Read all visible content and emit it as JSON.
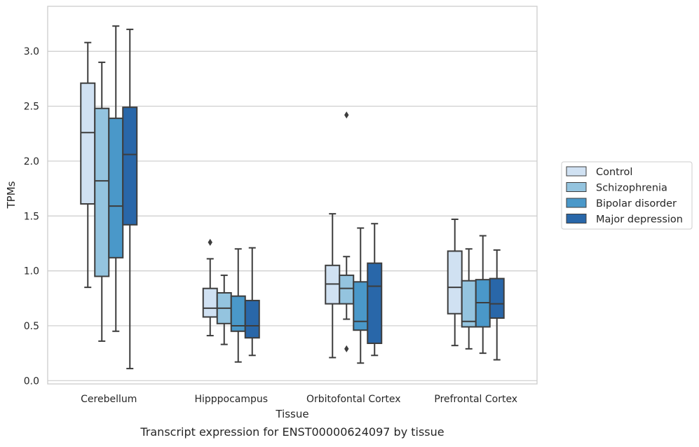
{
  "chart_data": {
    "type": "boxplot",
    "title": "",
    "caption": "Transcript expression for ENST00000624097 by tissue",
    "xlabel": "Tissue",
    "ylabel": "TPMs",
    "ylim": [
      -0.03,
      3.41
    ],
    "yticks": [
      0.0,
      0.5,
      1.0,
      1.5,
      2.0,
      2.5,
      3.0
    ],
    "ytick_labels": [
      "0.0",
      "0.5",
      "1.0",
      "1.5",
      "2.0",
      "2.5",
      "3.0"
    ],
    "grid": "horizontal",
    "legend_position": "right",
    "categories": [
      "Cerebellum",
      "Hipppocampus",
      "Orbitofontal Cortex",
      "Prefrontal Cortex"
    ],
    "series": [
      {
        "name": "Control",
        "color": "#d0e1f2",
        "boxes": [
          {
            "whisker_low": 0.85,
            "q1": 1.61,
            "median": 2.26,
            "q3": 2.71,
            "whisker_high": 3.08,
            "outliers": []
          },
          {
            "whisker_low": 0.41,
            "q1": 0.58,
            "median": 0.66,
            "q3": 0.84,
            "whisker_high": 1.11,
            "outliers": [
              1.26
            ]
          },
          {
            "whisker_low": 0.21,
            "q1": 0.7,
            "median": 0.88,
            "q3": 1.05,
            "whisker_high": 1.52,
            "outliers": []
          },
          {
            "whisker_low": 0.32,
            "q1": 0.61,
            "median": 0.85,
            "q3": 1.18,
            "whisker_high": 1.47,
            "outliers": []
          }
        ]
      },
      {
        "name": "Schizophrenia",
        "color": "#94c4df",
        "boxes": [
          {
            "whisker_low": 0.36,
            "q1": 0.95,
            "median": 1.82,
            "q3": 2.48,
            "whisker_high": 2.9,
            "outliers": []
          },
          {
            "whisker_low": 0.33,
            "q1": 0.52,
            "median": 0.66,
            "q3": 0.8,
            "whisker_high": 0.96,
            "outliers": []
          },
          {
            "whisker_low": 0.56,
            "q1": 0.7,
            "median": 0.84,
            "q3": 0.96,
            "whisker_high": 1.13,
            "outliers": [
              0.29,
              2.42
            ]
          },
          {
            "whisker_low": 0.29,
            "q1": 0.49,
            "median": 0.54,
            "q3": 0.91,
            "whisker_high": 1.2,
            "outliers": []
          }
        ]
      },
      {
        "name": "Bipolar disorder",
        "color": "#4a98c9",
        "boxes": [
          {
            "whisker_low": 0.45,
            "q1": 1.12,
            "median": 1.59,
            "q3": 2.39,
            "whisker_high": 3.23,
            "outliers": []
          },
          {
            "whisker_low": 0.17,
            "q1": 0.45,
            "median": 0.5,
            "q3": 0.77,
            "whisker_high": 1.2,
            "outliers": []
          },
          {
            "whisker_low": 0.16,
            "q1": 0.46,
            "median": 0.54,
            "q3": 0.9,
            "whisker_high": 1.39,
            "outliers": []
          },
          {
            "whisker_low": 0.25,
            "q1": 0.49,
            "median": 0.71,
            "q3": 0.92,
            "whisker_high": 1.32,
            "outliers": []
          }
        ]
      },
      {
        "name": "Major depression",
        "color": "#2967a9",
        "boxes": [
          {
            "whisker_low": 0.11,
            "q1": 1.42,
            "median": 2.06,
            "q3": 2.49,
            "whisker_high": 3.2,
            "outliers": []
          },
          {
            "whisker_low": 0.23,
            "q1": 0.39,
            "median": 0.5,
            "q3": 0.73,
            "whisker_high": 1.21,
            "outliers": []
          },
          {
            "whisker_low": 0.23,
            "q1": 0.34,
            "median": 0.86,
            "q3": 1.07,
            "whisker_high": 1.43,
            "outliers": []
          },
          {
            "whisker_low": 0.19,
            "q1": 0.57,
            "median": 0.7,
            "q3": 0.93,
            "whisker_high": 1.19,
            "outliers": []
          }
        ]
      }
    ]
  }
}
